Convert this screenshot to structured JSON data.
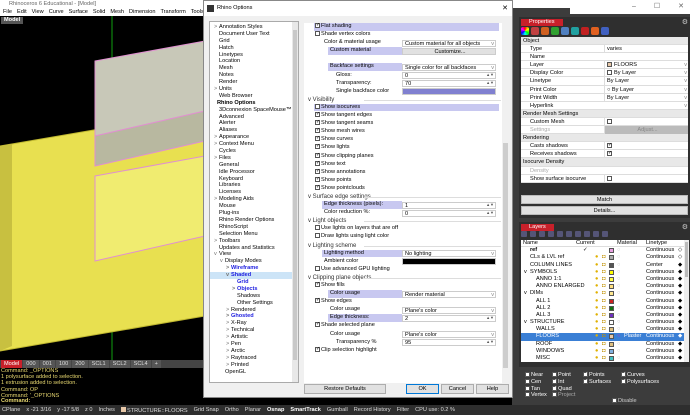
{
  "app": {
    "title": "Rhinoceros 6 Educational - [Model]",
    "menu": [
      "File",
      "Edit",
      "View",
      "Curve",
      "Surface",
      "Solid",
      "Mesh",
      "Dimension",
      "Transform",
      "Tools",
      "Analyze"
    ],
    "viewport_label": "Model",
    "viewport_tabs": [
      "Model",
      "000",
      "001",
      "100",
      "200",
      "SCL1",
      "SCL2",
      "SCL4",
      "+"
    ],
    "command_history": [
      "Command: _OPTIONS",
      "1 polysurface added to selection.",
      "1 extrusion added to selection.",
      "Command: OP",
      "Command: '_OPTIONS"
    ],
    "command_prompt": "Command:",
    "disable_label": "Disable",
    "window_controls": [
      "–",
      "☐",
      "✕"
    ]
  },
  "status": {
    "items": [
      "CPlane",
      "x -21 3/16",
      "y -17 5/8",
      "z 0",
      "Inches",
      "STRUCTURE::FLOORS",
      "Grid Snap",
      "Ortho",
      "Planar",
      "Osnap",
      "SmartTrack",
      "Gumball",
      "Record History",
      "Filter",
      "CPU use: 0.2 %"
    ],
    "bold": [
      "Osnap",
      "SmartTrack"
    ],
    "layer_color": "#e8c8a8"
  },
  "dialog": {
    "title": "Rhino Options",
    "close": "✕",
    "tree": [
      {
        "t": "Annotation Styles",
        "d": 0,
        "e": ">"
      },
      {
        "t": "Document User Text",
        "d": 0
      },
      {
        "t": "Grid",
        "d": 0
      },
      {
        "t": "Hatch",
        "d": 0
      },
      {
        "t": "Linetypes",
        "d": 0
      },
      {
        "t": "Location",
        "d": 0
      },
      {
        "t": "Mesh",
        "d": 0
      },
      {
        "t": "Notes",
        "d": 0
      },
      {
        "t": "Render",
        "d": 0
      },
      {
        "t": "Units",
        "d": 0,
        "e": ">"
      },
      {
        "t": "Web Browser",
        "d": 0
      },
      {
        "t": "Rhino Options",
        "d": -1,
        "s": "bold"
      },
      {
        "t": "3Dconnexion SpaceMouse™",
        "d": 0
      },
      {
        "t": "Advanced",
        "d": 0
      },
      {
        "t": "Alerter",
        "d": 0
      },
      {
        "t": "Aliases",
        "d": 0
      },
      {
        "t": "Appearance",
        "d": 0,
        "e": ">"
      },
      {
        "t": "Context Menu",
        "d": 0,
        "e": ">"
      },
      {
        "t": "Cycles",
        "d": 0
      },
      {
        "t": "Files",
        "d": 0,
        "e": ">"
      },
      {
        "t": "General",
        "d": 0
      },
      {
        "t": "Idle Processor",
        "d": 0
      },
      {
        "t": "Keyboard",
        "d": 0
      },
      {
        "t": "Libraries",
        "d": 0
      },
      {
        "t": "Licenses",
        "d": 0
      },
      {
        "t": "Modeling Aids",
        "d": 0,
        "e": ">"
      },
      {
        "t": "Mouse",
        "d": 0
      },
      {
        "t": "Plug-ins",
        "d": 0
      },
      {
        "t": "Rhino Render Options",
        "d": 0
      },
      {
        "t": "RhinoScript",
        "d": 0
      },
      {
        "t": "Selection Menu",
        "d": 0
      },
      {
        "t": "Toolbars",
        "d": 0,
        "e": ">"
      },
      {
        "t": "Updates and Statistics",
        "d": 0
      },
      {
        "t": "View",
        "d": 0,
        "e": "v"
      },
      {
        "t": "Display Modes",
        "d": 1,
        "e": "v"
      },
      {
        "t": "Wireframe",
        "d": 2,
        "e": ">",
        "s": "blue"
      },
      {
        "t": "Shaded",
        "d": 2,
        "e": "v",
        "s": "blue sel"
      },
      {
        "t": "Grid",
        "d": 3,
        "s": "blue"
      },
      {
        "t": "Objects",
        "d": 3,
        "e": ">",
        "s": "blue"
      },
      {
        "t": "Shadows",
        "d": 3
      },
      {
        "t": "Other Settings",
        "d": 3
      },
      {
        "t": "Rendered",
        "d": 2,
        "e": ">"
      },
      {
        "t": "Ghosted",
        "d": 2,
        "e": ">",
        "s": "blue"
      },
      {
        "t": "X-Ray",
        "d": 2,
        "e": ">"
      },
      {
        "t": "Technical",
        "d": 2,
        "e": ">"
      },
      {
        "t": "Artistic",
        "d": 2,
        "e": ">"
      },
      {
        "t": "Pen",
        "d": 2,
        "e": ">"
      },
      {
        "t": "Arctic",
        "d": 2,
        "e": ">"
      },
      {
        "t": "Raytraced",
        "d": 2,
        "e": ">"
      },
      {
        "t": "Printed",
        "d": 2,
        "e": ">"
      },
      {
        "t": "OpenGL",
        "d": 1
      }
    ],
    "settings": [
      {
        "k": "check",
        "label": "Flat shading",
        "checked": true,
        "hl": true
      },
      {
        "k": "check",
        "label": "Shade vertex colors",
        "checked": false
      },
      {
        "k": "field",
        "label": "Color & material usage",
        "value": "Custom material for all objects",
        "ind": 1,
        "vk": "select"
      },
      {
        "k": "field",
        "label": "Custom material",
        "value": "Customize...",
        "ind": 2,
        "vk": "btn",
        "hl": true
      },
      {
        "k": "blank"
      },
      {
        "k": "field",
        "label": "Backface settings",
        "value": "Single color for all backfaces",
        "ind": 2,
        "vk": "select",
        "hl": true
      },
      {
        "k": "field",
        "label": "Gloss:",
        "value": "0",
        "ind": 3,
        "vk": "spin"
      },
      {
        "k": "field",
        "label": "Transparency:",
        "value": "70",
        "ind": 3,
        "vk": "spin"
      },
      {
        "k": "field",
        "label": "Single backface color",
        "value": "",
        "ind": 3,
        "vk": "color"
      },
      {
        "k": "sec",
        "label": "Visibility"
      },
      {
        "k": "check",
        "label": "Show isocurves",
        "checked": false,
        "hl": true
      },
      {
        "k": "check",
        "label": "Show tangent edges",
        "checked": true
      },
      {
        "k": "check",
        "label": "Show tangent seams",
        "checked": true
      },
      {
        "k": "check",
        "label": "Show mesh wires",
        "checked": true
      },
      {
        "k": "check",
        "label": "Show curves",
        "checked": true
      },
      {
        "k": "check",
        "label": "Show lights",
        "checked": true
      },
      {
        "k": "check",
        "label": "Show clipping planes",
        "checked": true
      },
      {
        "k": "check",
        "label": "Show text",
        "checked": true
      },
      {
        "k": "check",
        "label": "Show annotations",
        "checked": true
      },
      {
        "k": "check",
        "label": "Show points",
        "checked": true
      },
      {
        "k": "check",
        "label": "Show pointclouds",
        "checked": true
      },
      {
        "k": "sec",
        "label": "Surface edge settings"
      },
      {
        "k": "field",
        "label": "Edge thickness (pixels):",
        "value": "1",
        "ind": 1,
        "vk": "spin",
        "hl": true
      },
      {
        "k": "field",
        "label": "Color reduction %:",
        "value": "0",
        "ind": 1,
        "vk": "spin"
      },
      {
        "k": "sec",
        "label": "Light objects"
      },
      {
        "k": "check",
        "label": "Use lights on layers that are off",
        "checked": false
      },
      {
        "k": "check",
        "label": "Draw lights using light color",
        "checked": false
      },
      {
        "k": "sec",
        "label": "Lighting scheme"
      },
      {
        "k": "field",
        "label": "Lighting method",
        "value": "No lighting",
        "ind": 1,
        "vk": "select",
        "hl": true
      },
      {
        "k": "field",
        "label": "Ambient color",
        "value": "",
        "ind": 1,
        "vk": "black"
      },
      {
        "k": "check",
        "label": "Use advanced GPU lighting",
        "checked": false
      },
      {
        "k": "sec",
        "label": "Clipping plane objects"
      },
      {
        "k": "check",
        "label": "Show fills",
        "checked": true
      },
      {
        "k": "field",
        "label": "Color usage",
        "value": "Render material",
        "ind": 2,
        "vk": "select",
        "hl": true
      },
      {
        "k": "check",
        "label": "Show edges",
        "checked": true
      },
      {
        "k": "field",
        "label": "Color usage",
        "value": "Plane's color",
        "ind": 2,
        "vk": "select"
      },
      {
        "k": "field",
        "label": "Edge thickness:",
        "value": "2",
        "ind": 2,
        "vk": "spin",
        "hl": true
      },
      {
        "k": "check",
        "label": "Shade selected plane",
        "checked": true
      },
      {
        "k": "field",
        "label": "Color usage",
        "value": "Plane's color",
        "ind": 2,
        "vk": "select"
      },
      {
        "k": "field",
        "label": "Transparency %",
        "value": "95",
        "ind": 3,
        "vk": "spin"
      },
      {
        "k": "check",
        "label": "Clip selection highlight",
        "checked": true
      }
    ],
    "buttons": {
      "restore": "Restore Defaults",
      "ok": "OK",
      "cancel": "Cancel",
      "help": "Help"
    }
  },
  "properties": {
    "tab": "Properties",
    "rows": [
      {
        "h": "Object"
      },
      {
        "k": "Type",
        "v": "varies"
      },
      {
        "k": "Name",
        "v": ""
      },
      {
        "k": "Layer",
        "v": "FLOORS",
        "sw": "#e8c8a8",
        "dd": true
      },
      {
        "k": "Display Color",
        "v": "By Layer",
        "sw": "#ffffff",
        "dd": true
      },
      {
        "k": "Linetype",
        "v": "By Layer",
        "dd": true
      },
      {
        "k": "Print Color",
        "v": "○ By Layer",
        "dd": true
      },
      {
        "k": "Print Width",
        "v": "By Layer",
        "dd": true
      },
      {
        "k": "Hyperlink",
        "v": "",
        "dd": true
      },
      {
        "h": "Render Mesh Settings"
      },
      {
        "k": "Custom Mesh",
        "cb": false
      },
      {
        "k": "Settings",
        "v": "Adjust...",
        "dis": true
      },
      {
        "h": "Rendering"
      },
      {
        "k": "Casts shadows",
        "cb": true
      },
      {
        "k": "Receives shadows",
        "cb": true
      },
      {
        "h": "Isocurve Density"
      },
      {
        "k": "Density",
        "v": "",
        "dark": true
      },
      {
        "k": "Show surface isocurve",
        "cb": false
      }
    ],
    "match": "Match",
    "details": "Details..."
  },
  "layers": {
    "tab": "Layers",
    "headers": [
      "Name",
      "Current",
      "Material",
      "Linetype"
    ],
    "rows": [
      {
        "n": "ref",
        "d": 0,
        "cur": "✓",
        "c": "#e8a0e0",
        "lt": "Continuous",
        "bold": true
      },
      {
        "n": "CLs & LVL ref",
        "d": 0,
        "c": "#aaaaaa",
        "lt": "Continuous"
      },
      {
        "n": "COLUMN LINES",
        "d": 0,
        "c": "#555555",
        "lt": "Center"
      },
      {
        "n": "SYMBOLS",
        "d": 0,
        "e": "v",
        "c": "#ffff00",
        "lt": "Continuous"
      },
      {
        "n": "ANNO 1:1",
        "d": 1,
        "c": "#ffff40",
        "lt": "Continuous"
      },
      {
        "n": "ANNO ENLARGED",
        "d": 1,
        "c": "#ffe080",
        "lt": "Continuous"
      },
      {
        "n": "DIMs",
        "d": 0,
        "e": "v",
        "c": "#ffe890",
        "lt": "Continuous"
      },
      {
        "n": "ALL 1",
        "d": 1,
        "c": "#cc2020",
        "lt": "Continuous"
      },
      {
        "n": "ALL 2",
        "d": 1,
        "c": "#107010",
        "lt": "Continuous"
      },
      {
        "n": "ALL 3",
        "d": 1,
        "c": "#7030c0",
        "lt": "Continuous"
      },
      {
        "n": "STRUCTURE",
        "d": 0,
        "e": "v",
        "c": "#ffffff",
        "lt": "Continuous"
      },
      {
        "n": "WALLS",
        "d": 1,
        "c": "#e0c080",
        "lt": "Continuous"
      },
      {
        "n": "FLOORS",
        "d": 1,
        "c": "#e8c8a8",
        "lt": "Continuous",
        "mat": "Plaster",
        "sel": true
      },
      {
        "n": "ROOF",
        "d": 1,
        "c": "#e0c080",
        "lt": "Continuous"
      },
      {
        "n": "WINDOWS",
        "d": 1,
        "c": "#80b0e0",
        "lt": "Continuous"
      },
      {
        "n": "MISC",
        "d": 1,
        "c": "#40c0c0",
        "lt": "Continuous"
      }
    ]
  },
  "osnap": [
    {
      "l": "Near",
      "c": false
    },
    {
      "l": "Cen",
      "c": false
    },
    {
      "l": "Tan",
      "c": false
    },
    {
      "l": "Vertex",
      "c": false
    },
    {
      "l": "Point",
      "c": false
    },
    {
      "l": "Int",
      "c": true
    },
    {
      "l": "Quad",
      "c": true
    },
    {
      "l": "Project",
      "c": false,
      "dis": true
    },
    {
      "l": "Points",
      "c": true
    },
    {
      "l": "Surfaces",
      "c": true
    },
    {
      "l": "Curves",
      "c": true
    },
    {
      "l": "Polysurfaces",
      "c": true
    }
  ]
}
